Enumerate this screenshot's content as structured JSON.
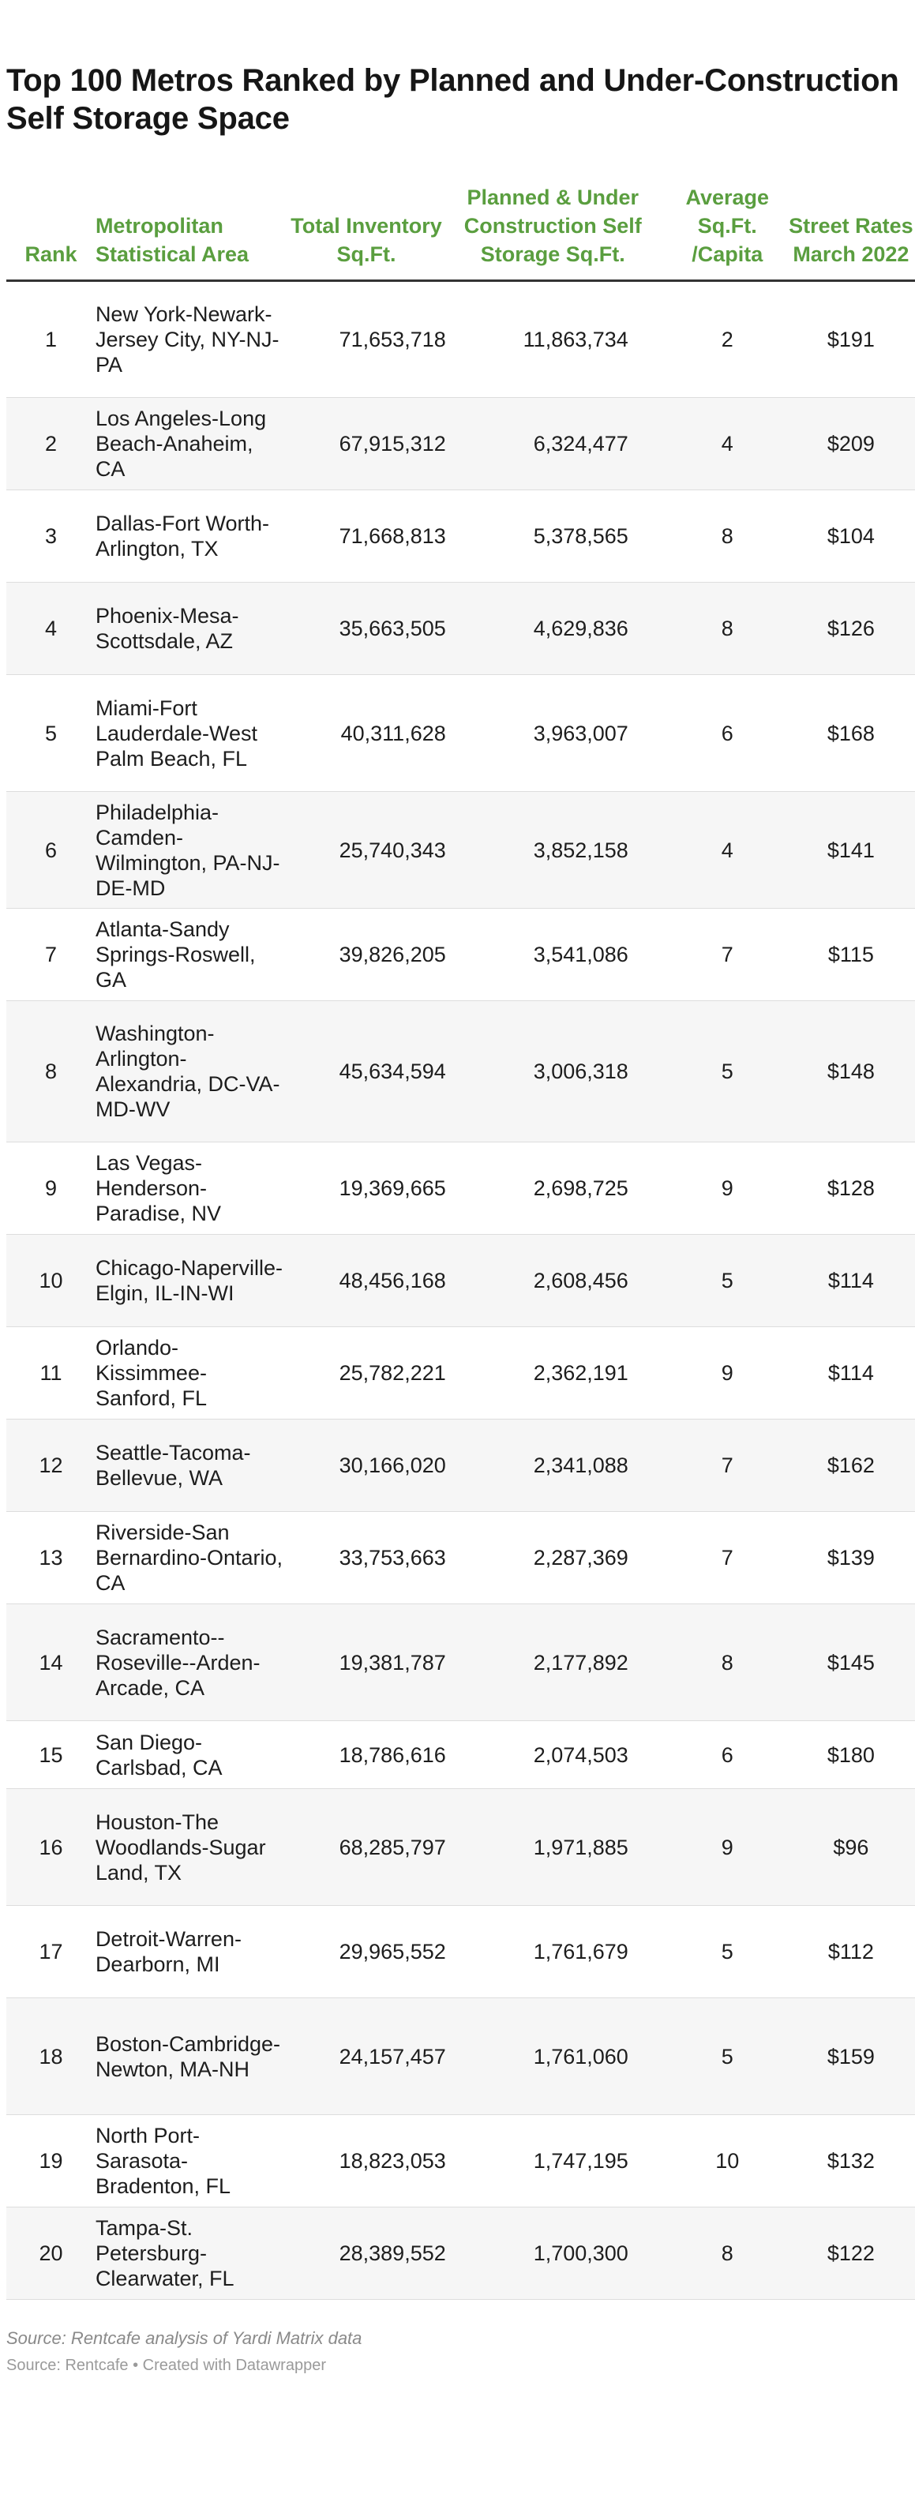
{
  "title": "Top 100 Metros Ranked by Planned and Under-Construction Self Storage Space",
  "footer": {
    "note": "Source: Rentcafe analysis of Yardi Matrix data",
    "credit": "Source: Rentcafe • Created with Datawrapper"
  },
  "colors": {
    "header_text": "#5a9e3f",
    "header_rule": "#333333",
    "row_stripe": "#f6f6f6"
  },
  "chart_data": {
    "type": "table",
    "title": "Top 100 Metros Ranked by Planned and Under-Construction Self Storage Space",
    "columns": [
      "Rank",
      "Metropolitan Statistical Area",
      "Total Inventory Sq.Ft.",
      "Planned & Under Construction Self Storage Sq.Ft.",
      "Average Sq.Ft. /Capita",
      "Street Rates March 2022"
    ],
    "rows": [
      [
        "1",
        "New York-Newark-Jersey City, NY-NJ-PA",
        "71,653,718",
        "11,863,734",
        "2",
        "$191"
      ],
      [
        "2",
        "Los Angeles-Long Beach-Anaheim, CA",
        "67,915,312",
        "6,324,477",
        "4",
        "$209"
      ],
      [
        "3",
        "Dallas-Fort Worth-Arlington, TX",
        "71,668,813",
        "5,378,565",
        "8",
        "$104"
      ],
      [
        "4",
        "Phoenix-Mesa-Scottsdale, AZ",
        "35,663,505",
        "4,629,836",
        "8",
        "$126"
      ],
      [
        "5",
        "Miami-Fort Lauderdale-West Palm Beach, FL",
        "40,311,628",
        "3,963,007",
        "6",
        "$168"
      ],
      [
        "6",
        "Philadelphia-Camden-Wilmington, PA-NJ-DE-MD",
        "25,740,343",
        "3,852,158",
        "4",
        "$141"
      ],
      [
        "7",
        "Atlanta-Sandy Springs-Roswell, GA",
        "39,826,205",
        "3,541,086",
        "7",
        "$115"
      ],
      [
        "8",
        "Washington-Arlington-Alexandria, DC-VA-MD-WV",
        "45,634,594",
        "3,006,318",
        "5",
        "$148"
      ],
      [
        "9",
        "Las Vegas-Henderson-Paradise, NV",
        "19,369,665",
        "2,698,725",
        "9",
        "$128"
      ],
      [
        "10",
        "Chicago-Naperville-Elgin, IL-IN-WI",
        "48,456,168",
        "2,608,456",
        "5",
        "$114"
      ],
      [
        "11",
        "Orlando-Kissimmee-Sanford, FL",
        "25,782,221",
        "2,362,191",
        "9",
        "$114"
      ],
      [
        "12",
        "Seattle-Tacoma-Bellevue, WA",
        "30,166,020",
        "2,341,088",
        "7",
        "$162"
      ],
      [
        "13",
        "Riverside-San Bernardino-Ontario, CA",
        "33,753,663",
        "2,287,369",
        "7",
        "$139"
      ],
      [
        "14",
        "Sacramento--Roseville--Arden-Arcade, CA",
        "19,381,787",
        "2,177,892",
        "8",
        "$145"
      ],
      [
        "15",
        "San Diego-Carlsbad, CA",
        "18,786,616",
        "2,074,503",
        "6",
        "$180"
      ],
      [
        "16",
        "Houston-The Woodlands-Sugar Land, TX",
        "68,285,797",
        "1,971,885",
        "9",
        "$96"
      ],
      [
        "17",
        "Detroit-Warren-Dearborn, MI",
        "29,965,552",
        "1,761,679",
        "5",
        "$112"
      ],
      [
        "18",
        "Boston-Cambridge-Newton, MA-NH",
        "24,157,457",
        "1,761,060",
        "5",
        "$159"
      ],
      [
        "19",
        "North Port-Sarasota-Bradenton, FL",
        "18,823,053",
        "1,747,195",
        "10",
        "$132"
      ],
      [
        "20",
        "Tampa-St. Petersburg-Clearwater, FL",
        "28,389,552",
        "1,700,300",
        "8",
        "$122"
      ]
    ]
  }
}
